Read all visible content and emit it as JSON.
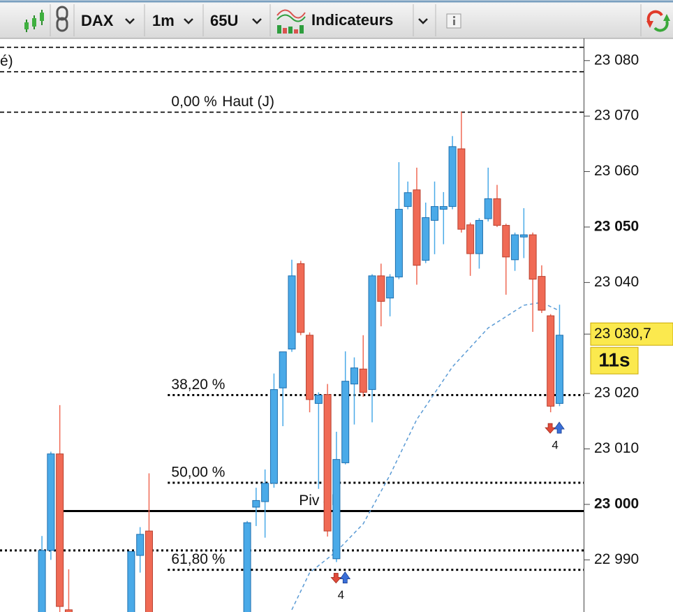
{
  "toolbar": {
    "items": [
      "DAX",
      "1m",
      "65U",
      "Indicateurs"
    ]
  },
  "chart_data": {
    "type": "candlestick",
    "categories": [
      null,
      null,
      null,
      null,
      null,
      null,
      null,
      null,
      null,
      null,
      null,
      null,
      null,
      null,
      null,
      null,
      null,
      null,
      null,
      null,
      null,
      null,
      null,
      null,
      null,
      null,
      null,
      null,
      null,
      null,
      null,
      null,
      null,
      null,
      null,
      null,
      null,
      null,
      null,
      null,
      null,
      null,
      null,
      null,
      null,
      null,
      null,
      null,
      null,
      null,
      null,
      null,
      null,
      null,
      null,
      null,
      null,
      null,
      null
    ],
    "xlim": [
      -4.7,
      60.7
    ],
    "ylim": [
      22980.6,
      23084
    ],
    "yticks": [
      {
        "value": 23080,
        "label": "23 080"
      },
      {
        "value": 23070,
        "label": "23 070"
      },
      {
        "value": 23060,
        "label": "23 060"
      },
      {
        "value": 23050,
        "label": "23 050"
      },
      {
        "value": 23040,
        "label": "23 040"
      },
      {
        "value": 23020,
        "label": "23 020"
      },
      {
        "value": 23010,
        "label": "23 010"
      },
      {
        "value": 23000,
        "label": "23 000"
      },
      {
        "value": 22990,
        "label": "22 990"
      }
    ],
    "up_color": "#4aaae8",
    "down_color": "#f06a55",
    "series": [
      {
        "open": [
          22980,
          22991.7,
          23009.1,
          22981,
          null,
          null,
          null,
          null,
          null,
          null,
          22980,
          22990.8,
          22995.2,
          null,
          null,
          null,
          null,
          null,
          null,
          null,
          null,
          null,
          null,
          22980,
          22999.5,
          23000.5,
          23003.8,
          23021,
          23028,
          23043.4,
          23030.5,
          23018.2,
          23019.8,
          22990.2,
          23007.5,
          23021.7,
          23024.4,
          23020.7,
          23041.2,
          23037.2,
          23041,
          23053.7,
          23056.7,
          23044,
          23051.2,
          23053.2,
          23053.7,
          23064.1,
          23050.4,
          23045.2,
          23051.5,
          23055.1,
          23050.3,
          23044.1,
          23048.2,
          23048.6,
          23041.1,
          23034,
          23018.2
        ],
        "high": [
          22994.3,
          23009.5,
          23017.9,
          22988.3,
          null,
          null,
          null,
          null,
          null,
          null,
          22991.5,
          22995.9,
          23005.6,
          null,
          null,
          null,
          null,
          null,
          null,
          null,
          null,
          null,
          null,
          22997,
          23003,
          23006.3,
          23023.6,
          23027.5,
          23044.1,
          23043.9,
          23031,
          23020.2,
          23021.7,
          23013.1,
          23027.6,
          23026.5,
          23030.5,
          23041.5,
          23043.4,
          23041.5,
          23061.7,
          23058.2,
          23060.7,
          23054.4,
          23058.2,
          23056.3,
          23066.4,
          23070.8,
          23050.8,
          23051.6,
          23060.7,
          23057.6,
          23050.6,
          23049,
          23053.4,
          23049,
          23043.1,
          23034.3,
          23036
        ],
        "low": [
          22980,
          22990,
          22980,
          22979,
          null,
          null,
          null,
          null,
          null,
          null,
          22979,
          22987.7,
          22979,
          null,
          null,
          null,
          null,
          null,
          null,
          null,
          null,
          null,
          null,
          22979,
          22996.1,
          22994,
          23003,
          23014.1,
          23027.5,
          23030.5,
          23016.6,
          23002.8,
          22994.2,
          22989.6,
          23007.2,
          23014.4,
          23019.4,
          23014.8,
          23032.1,
          23033.9,
          23040.6,
          23053.2,
          23039.6,
          23043.5,
          23045.1,
          23046.9,
          23053.2,
          23049,
          23041.2,
          23042.5,
          23051,
          23050,
          23037.8,
          23042.1,
          23044.4,
          23031.1,
          23034.5,
          23016.6,
          23017.7
        ],
        "close": [
          22991.7,
          23009.1,
          22981.6,
          22980,
          null,
          null,
          null,
          null,
          null,
          null,
          22991.5,
          22994.6,
          22980,
          null,
          null,
          null,
          null,
          null,
          null,
          null,
          null,
          null,
          null,
          22996.7,
          23000.7,
          23003.8,
          23020.7,
          23027.5,
          23041.2,
          23031,
          23018.9,
          23019.7,
          22995.2,
          23008.1,
          23022.2,
          23024.6,
          23020.2,
          23041.2,
          23036.6,
          23041,
          23053.2,
          23056.2,
          23043.1,
          23051.7,
          23053.7,
          23053.7,
          23064.5,
          23049.6,
          23045.2,
          23051.2,
          23055.1,
          23050.3,
          23044.6,
          23048.6,
          23048.6,
          23040.6,
          23035,
          23017.7,
          23030.5
        ]
      }
    ],
    "moving_average": {
      "color": "#5b9bd5",
      "x": [
        28,
        30,
        33,
        36,
        39,
        42,
        46,
        50,
        54,
        56,
        58
      ],
      "values": [
        22981,
        22987.7,
        22991.5,
        22996.5,
        23005.3,
        23015.3,
        23024.8,
        23031.8,
        23035.9,
        23036.4,
        23034.9
      ]
    },
    "levels": [
      {
        "value": 23082.4,
        "style": "dashed",
        "start": -4.7
      },
      {
        "value": 23078,
        "style": "dashed",
        "start": -4.7,
        "labels": [
          {
            "text": "é)",
            "at": -4.7
          }
        ]
      },
      {
        "value": 23070.7,
        "style": "dashed",
        "start": -4.7,
        "labels": [
          {
            "text": "0,00 %",
            "at": 14.5
          },
          {
            "text": "Haut (J)",
            "at": 20.2
          }
        ]
      },
      {
        "value": 23019.7,
        "style": "dotted",
        "start": 14.1,
        "labels": [
          {
            "text": "38,20 %",
            "at": 14.5
          }
        ]
      },
      {
        "value": 23003.9,
        "style": "dotted",
        "start": 14.1,
        "labels": [
          {
            "text": "50,00 %",
            "at": 14.5
          }
        ]
      },
      {
        "value": 22998.8,
        "style": "solid",
        "start": 2.2,
        "labels": [
          {
            "text": "Piv 4h",
            "at": 28.8
          }
        ]
      },
      {
        "value": 22991.7,
        "style": "dotted",
        "start": -4.7
      },
      {
        "value": 22988.2,
        "style": "dotted",
        "start": 14.1,
        "labels": [
          {
            "text": "61,80 %",
            "at": 14.5
          }
        ]
      }
    ],
    "signals": [
      {
        "index": 33.5,
        "count": 4
      },
      {
        "index": 57.5,
        "count": 4
      }
    ],
    "last_price": {
      "value": 23030.7,
      "label": "23 030,7"
    },
    "countdown": "11s"
  }
}
